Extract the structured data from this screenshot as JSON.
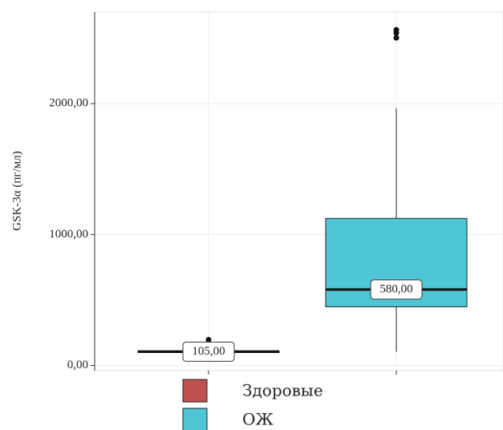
{
  "chart_data": {
    "type": "box",
    "y_label": "GSK-3α (пг/мл)",
    "ylim": [
      -40,
      2700
    ],
    "yticks": [
      {
        "value": 0,
        "label": "0,00"
      },
      {
        "value": 1000,
        "label": "1000,00"
      },
      {
        "value": 2000,
        "label": "2000,00"
      }
    ],
    "grid": true,
    "series": [
      {
        "name": "Здоровые",
        "color": "#c0504d",
        "whisker_low": 85,
        "q1": 98,
        "median": 105,
        "q3": 112,
        "whisker_high": 125,
        "outliers": [
          196
        ],
        "median_label": "105,00"
      },
      {
        "name": "ОЖ",
        "color": "#4fc6d6",
        "whisker_low": 104,
        "q1": 448,
        "median": 580,
        "q3": 1123,
        "whisker_high": 1963,
        "outliers": [
          2503,
          2540,
          2564
        ],
        "median_label": "580,00"
      }
    ]
  }
}
